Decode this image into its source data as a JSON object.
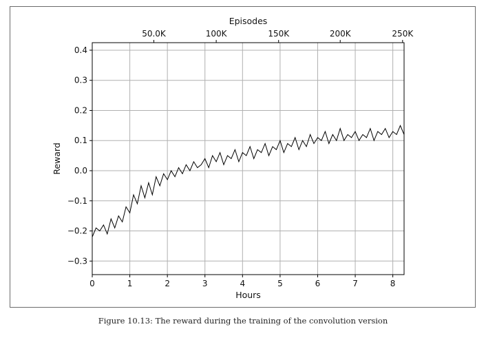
{
  "caption": "Figure 10.13: The reward during the training of the convolution version",
  "chart_data": {
    "type": "line",
    "xlabel": "Hours",
    "ylabel": "Reward",
    "top_xlabel": "Episodes",
    "xlim": [
      0,
      8.3
    ],
    "ylim": [
      -0.345,
      0.425
    ],
    "xticks": [
      0,
      1,
      2,
      3,
      4,
      5,
      6,
      7,
      8
    ],
    "xtick_labels": [
      "0",
      "1",
      "2",
      "3",
      "4",
      "5",
      "6",
      "7",
      "8"
    ],
    "yticks": [
      -0.3,
      -0.2,
      -0.1,
      0.0,
      0.1,
      0.2,
      0.3,
      0.4
    ],
    "ytick_labels": [
      "−0.3",
      "−0.2",
      "−0.1",
      "0.0",
      "0.1",
      "0.2",
      "0.3",
      "0.4"
    ],
    "top_xticks": [
      1.64,
      3.3,
      4.96,
      6.6,
      8.26
    ],
    "top_xtick_labels": [
      "50.0K",
      "100K",
      "150K",
      "200K",
      "250K"
    ],
    "grid": true,
    "line_color": "#000000",
    "series": [
      {
        "x": [
          0.0,
          0.1,
          0.2,
          0.3,
          0.4,
          0.5,
          0.6,
          0.7,
          0.8,
          0.9,
          1.0,
          1.1,
          1.2,
          1.3,
          1.4,
          1.5,
          1.6,
          1.7,
          1.8,
          1.9,
          2.0,
          2.1,
          2.2,
          2.3,
          2.4,
          2.5,
          2.6,
          2.7,
          2.8,
          2.9,
          3.0,
          3.1,
          3.2,
          3.3,
          3.4,
          3.5,
          3.6,
          3.7,
          3.8,
          3.9,
          4.0,
          4.1,
          4.2,
          4.3,
          4.4,
          4.5,
          4.6,
          4.7,
          4.8,
          4.9,
          5.0,
          5.1,
          5.2,
          5.3,
          5.4,
          5.5,
          5.6,
          5.7,
          5.8,
          5.9,
          6.0,
          6.1,
          6.2,
          6.3,
          6.4,
          6.5,
          6.6,
          6.7,
          6.8,
          6.9,
          7.0,
          7.1,
          7.2,
          7.3,
          7.4,
          7.5,
          7.6,
          7.7,
          7.8,
          7.9,
          8.0,
          8.1,
          8.2,
          8.3
        ],
        "y": [
          -0.22,
          -0.19,
          -0.2,
          -0.18,
          -0.21,
          -0.16,
          -0.19,
          -0.15,
          -0.17,
          -0.12,
          -0.14,
          -0.08,
          -0.11,
          -0.05,
          -0.09,
          -0.04,
          -0.08,
          -0.02,
          -0.05,
          -0.01,
          -0.03,
          0.0,
          -0.02,
          0.01,
          -0.01,
          0.02,
          0.0,
          0.03,
          0.01,
          0.02,
          0.04,
          0.01,
          0.05,
          0.03,
          0.06,
          0.02,
          0.05,
          0.04,
          0.07,
          0.03,
          0.06,
          0.05,
          0.08,
          0.04,
          0.07,
          0.06,
          0.09,
          0.05,
          0.08,
          0.07,
          0.1,
          0.06,
          0.09,
          0.08,
          0.11,
          0.07,
          0.1,
          0.08,
          0.12,
          0.09,
          0.11,
          0.1,
          0.13,
          0.09,
          0.12,
          0.1,
          0.14,
          0.1,
          0.12,
          0.11,
          0.13,
          0.1,
          0.12,
          0.11,
          0.14,
          0.1,
          0.13,
          0.12,
          0.14,
          0.11,
          0.13,
          0.12,
          0.15,
          0.12
        ]
      }
    ]
  }
}
